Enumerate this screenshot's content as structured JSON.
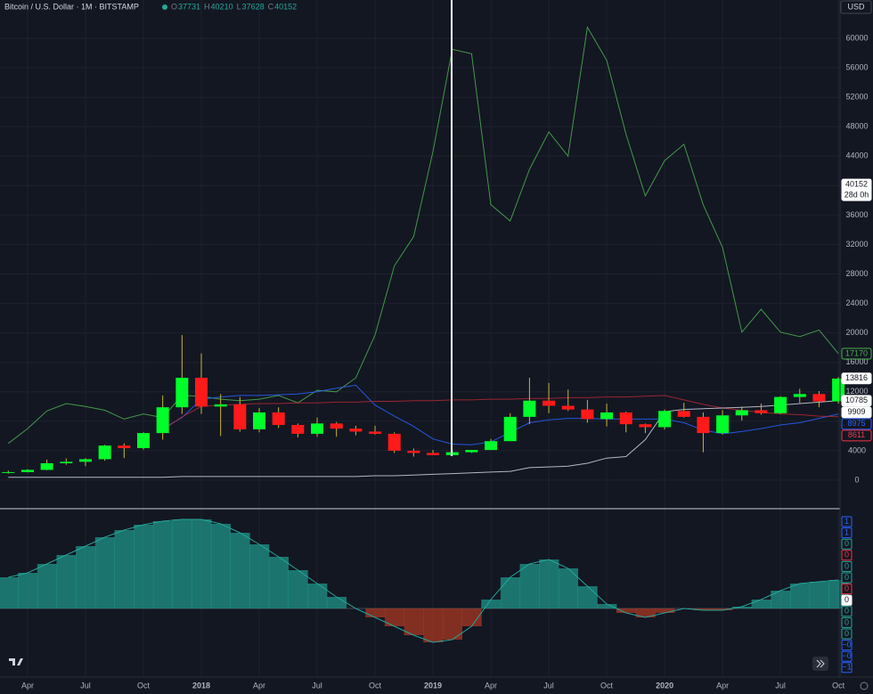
{
  "chart_data": [
    {
      "type": "candlestick",
      "title": "Bitcoin / U.S. Dollar · 1M · BITSTAMP",
      "currency": "USD",
      "ohlc": [
        {
          "key": "O",
          "value": 37731
        },
        {
          "key": "H",
          "value": 40210
        },
        {
          "key": "L",
          "value": 37628
        },
        {
          "key": "C",
          "value": 40152
        }
      ],
      "categories": [
        null,
        "Apr",
        null,
        null,
        "Jul",
        null,
        null,
        "Oct",
        null,
        null,
        "2018",
        null,
        null,
        "Apr",
        null,
        null,
        "Jul",
        null,
        null,
        "Oct",
        null,
        null,
        "2019",
        null,
        null,
        "Apr",
        null,
        null,
        "Jul",
        null,
        null,
        "Oct",
        null,
        null,
        "2020",
        null,
        null,
        "Apr",
        null,
        null,
        "Jul",
        null,
        null,
        "Oct"
      ],
      "open": [
        1000,
        1100,
        1400,
        2300,
        2500,
        2850,
        4700,
        4350,
        6400,
        9900,
        13900,
        10000,
        10300,
        6900,
        9200,
        7500,
        6300,
        7700,
        7000,
        6600,
        6300,
        4000,
        3700,
        3400,
        3800,
        4100,
        5300,
        8600,
        10800,
        10100,
        9600,
        8300,
        9200,
        7600,
        7200,
        9400,
        8600,
        6400,
        8800,
        9500,
        9100,
        11300,
        11700,
        10700
      ],
      "high": [
        1300,
        1500,
        2800,
        2950,
        3000,
        4800,
        5000,
        6500,
        11500,
        19700,
        17200,
        11700,
        11300,
        9800,
        9900,
        7700,
        8500,
        7900,
        7400,
        7400,
        6500,
        4300,
        4100,
        4200,
        4100,
        5600,
        9100,
        13900,
        13200,
        12300,
        10900,
        10400,
        9300,
        7700,
        9600,
        10500,
        9200,
        9500,
        10000,
        10400,
        11400,
        12400,
        12100,
        14000
      ],
      "low": [
        900,
        1050,
        1350,
        2100,
        1900,
        2650,
        3000,
        4150,
        5500,
        9000,
        9000,
        6000,
        6600,
        6500,
        7100,
        5800,
        5900,
        5900,
        6100,
        6200,
        3700,
        3200,
        3400,
        3400,
        3700,
        4100,
        5300,
        7600,
        9100,
        9400,
        7800,
        7300,
        6500,
        6400,
        6900,
        8500,
        3800,
        6200,
        8100,
        8900,
        9000,
        10500,
        9900,
        10400
      ],
      "close": [
        1100,
        1400,
        2300,
        2500,
        2850,
        4700,
        4350,
        6400,
        9900,
        13900,
        10000,
        10300,
        6900,
        9200,
        7500,
        6300,
        7700,
        7000,
        6600,
        6300,
        4000,
        3700,
        3400,
        3800,
        4100,
        5300,
        8600,
        10800,
        10100,
        9600,
        8300,
        9200,
        7600,
        7200,
        9400,
        8600,
        6400,
        8800,
        9500,
        9100,
        11300,
        11700,
        10700,
        13800
      ],
      "up_color": "#00ff2a",
      "down_color": "#ff1a1a",
      "lines": [
        {
          "color": "#4caf50",
          "values": [
            5000,
            7000,
            9400,
            10400,
            10000,
            9500,
            8300,
            9000,
            8500,
            11500,
            11400,
            11000,
            10800,
            11000,
            11500,
            10500,
            12200,
            12000,
            13900,
            19700,
            29100,
            33100,
            44600,
            58500,
            57900,
            37400,
            35200,
            42200,
            47300,
            44000,
            61500,
            57000,
            47000,
            38600,
            43400,
            45600,
            37400,
            31600,
            20100,
            23200,
            20100,
            19500,
            20400,
            17200
          ]
        },
        {
          "color": "#2962ff",
          "values": [
            null,
            null,
            null,
            null,
            null,
            null,
            null,
            null,
            7000,
            8500,
            11000,
            11300,
            11500,
            11500,
            11600,
            11700,
            12000,
            12500,
            12900,
            10200,
            8700,
            7300,
            5600,
            4900,
            4800,
            5200,
            6500,
            7800,
            8200,
            8400,
            8400,
            8300,
            8300,
            8300,
            8300,
            7800,
            6800,
            6300,
            6600,
            7000,
            7500,
            7800,
            8400,
            8975
          ]
        },
        {
          "color": "#b22833",
          "values": [
            null,
            null,
            null,
            null,
            null,
            null,
            null,
            null,
            6800,
            8600,
            10000,
            10200,
            10300,
            10400,
            10400,
            10500,
            10500,
            10600,
            10600,
            10700,
            10700,
            10800,
            10800,
            10900,
            10900,
            11000,
            11000,
            11100,
            11100,
            11200,
            11200,
            11300,
            11300,
            11400,
            11500,
            10900,
            10300,
            9800,
            9500,
            9200,
            9000,
            8900,
            8700,
            8611
          ]
        },
        {
          "color": "#d1d4dc",
          "values": [
            400,
            400,
            400,
            400,
            400,
            400,
            400,
            400,
            400,
            500,
            500,
            500,
            500,
            500,
            500,
            500,
            500,
            500,
            500,
            600,
            600,
            700,
            800,
            900,
            1000,
            1100,
            1200,
            1700,
            1800,
            1900,
            2300,
            3000,
            3200,
            5500,
            9300,
            9600,
            9700,
            9800,
            9900,
            10000,
            10200,
            10400,
            10600,
            10785
          ]
        }
      ],
      "ylim": [
        -3750,
        65200
      ],
      "yticks": [
        0,
        4000,
        8000,
        12000,
        16000,
        20000,
        24000,
        28000,
        32000,
        36000,
        40000,
        44000,
        48000,
        52000,
        56000,
        60000
      ],
      "grid": true,
      "price_labels": [
        {
          "value": 40152,
          "sub": "28d 0h",
          "color": "#ffffff",
          "style": "filled"
        },
        {
          "value": 17170,
          "color": "#4caf50",
          "style": "outline"
        },
        {
          "value": 13816,
          "color": "#ffffff",
          "style": "filled"
        },
        {
          "value": 10785,
          "color": "#ffffff",
          "style": "filled"
        },
        {
          "value": 9909,
          "color": "#ffffff",
          "style": "filled"
        },
        {
          "value": 8975,
          "color": "#2962ff",
          "style": "outline"
        },
        {
          "value": 8611,
          "color": "#f23645",
          "style": "outline"
        }
      ]
    },
    {
      "type": "area",
      "values": [
        0.35,
        0.4,
        0.5,
        0.6,
        0.7,
        0.8,
        0.88,
        0.94,
        0.98,
        1.0,
        1.0,
        0.95,
        0.85,
        0.72,
        0.58,
        0.43,
        0.28,
        0.13,
        0.0,
        -0.1,
        -0.2,
        -0.3,
        -0.38,
        -0.35,
        -0.2,
        0.1,
        0.35,
        0.5,
        0.55,
        0.45,
        0.25,
        0.05,
        -0.05,
        -0.1,
        -0.05,
        0.0,
        -0.02,
        -0.02,
        0.02,
        0.1,
        0.2,
        0.28,
        0.3,
        0.32
      ],
      "up_color": "#1f9e8f",
      "down_color": "#b23a22",
      "ylim": [
        -0.77,
        1.11
      ],
      "scale_labels": [
        {
          "text": "1",
          "color": "#2962ff",
          "style": "outline"
        },
        {
          "text": "1",
          "color": "#2962ff",
          "style": "outline"
        },
        {
          "text": "0",
          "color": "#26a69a",
          "style": "outline"
        },
        {
          "text": "0",
          "color": "#f23645",
          "style": "outline"
        },
        {
          "text": "0",
          "color": "#26a69a",
          "style": "outline"
        },
        {
          "text": "0",
          "color": "#26a69a",
          "style": "outline"
        },
        {
          "text": "0",
          "color": "#f23645",
          "style": "outline"
        },
        {
          "text": "0",
          "color": "#ffffff",
          "style": "filled"
        },
        {
          "text": "0",
          "color": "#26a69a",
          "style": "outline"
        },
        {
          "text": "0",
          "color": "#26a69a",
          "style": "outline"
        },
        {
          "text": "0",
          "color": "#26a69a",
          "style": "outline"
        },
        {
          "text": "−0",
          "color": "#2962ff",
          "style": "outline"
        },
        {
          "text": "−0",
          "color": "#2962ff",
          "style": "outline"
        },
        {
          "text": "−1",
          "color": "#2962ff",
          "style": "outline"
        }
      ]
    }
  ]
}
